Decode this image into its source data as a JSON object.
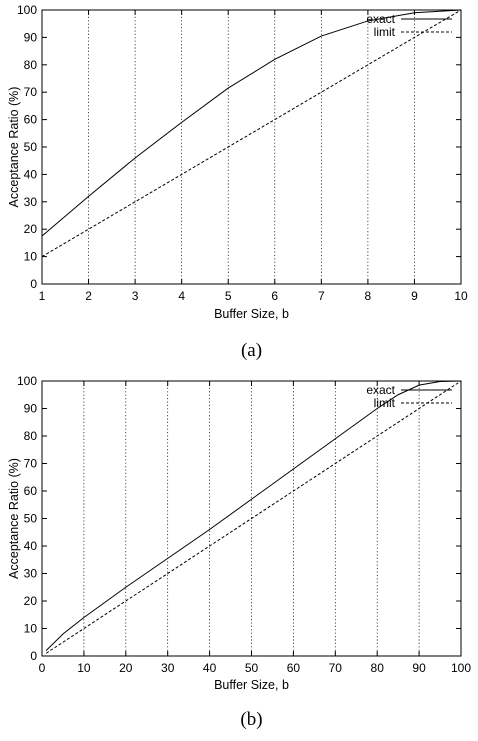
{
  "chart_data": [
    {
      "type": "line",
      "caption": "(a)",
      "xlabel": "Buffer Size, b",
      "ylabel": "Acceptance Ratio (%)",
      "xlim": [
        1,
        10
      ],
      "ylim": [
        0,
        100
      ],
      "xticks": [
        1,
        2,
        3,
        4,
        5,
        6,
        7,
        8,
        9,
        10
      ],
      "yticks": [
        0,
        10,
        20,
        30,
        40,
        50,
        60,
        70,
        80,
        90,
        100
      ],
      "grid": true,
      "legend_position": "top-right",
      "series": [
        {
          "name": "exact",
          "style": "solid",
          "x": [
            1,
            2,
            3,
            4,
            5,
            6,
            7,
            8,
            9,
            10
          ],
          "y": [
            17.5,
            32,
            46,
            59,
            71.5,
            82,
            90.5,
            96,
            99,
            100
          ]
        },
        {
          "name": "limit",
          "style": "dashed",
          "x": [
            1,
            10
          ],
          "y": [
            10,
            100
          ]
        }
      ]
    },
    {
      "type": "line",
      "caption": "(b)",
      "xlabel": "Buffer Size, b",
      "ylabel": "Acceptance Ratio (%)",
      "xlim": [
        0,
        100
      ],
      "ylim": [
        0,
        100
      ],
      "xticks": [
        0,
        10,
        20,
        30,
        40,
        50,
        60,
        70,
        80,
        90,
        100
      ],
      "yticks": [
        0,
        10,
        20,
        30,
        40,
        50,
        60,
        70,
        80,
        90,
        100
      ],
      "grid": true,
      "legend_position": "top-right",
      "series": [
        {
          "name": "exact",
          "style": "solid",
          "x": [
            1,
            5,
            10,
            20,
            30,
            40,
            50,
            60,
            70,
            80,
            85,
            90,
            95,
            100
          ],
          "y": [
            2,
            8,
            14,
            25,
            35.5,
            46,
            57,
            68,
            79,
            90,
            95,
            98.5,
            99.8,
            100
          ]
        },
        {
          "name": "limit",
          "style": "dashed",
          "x": [
            1,
            100
          ],
          "y": [
            1,
            100
          ]
        }
      ]
    }
  ]
}
